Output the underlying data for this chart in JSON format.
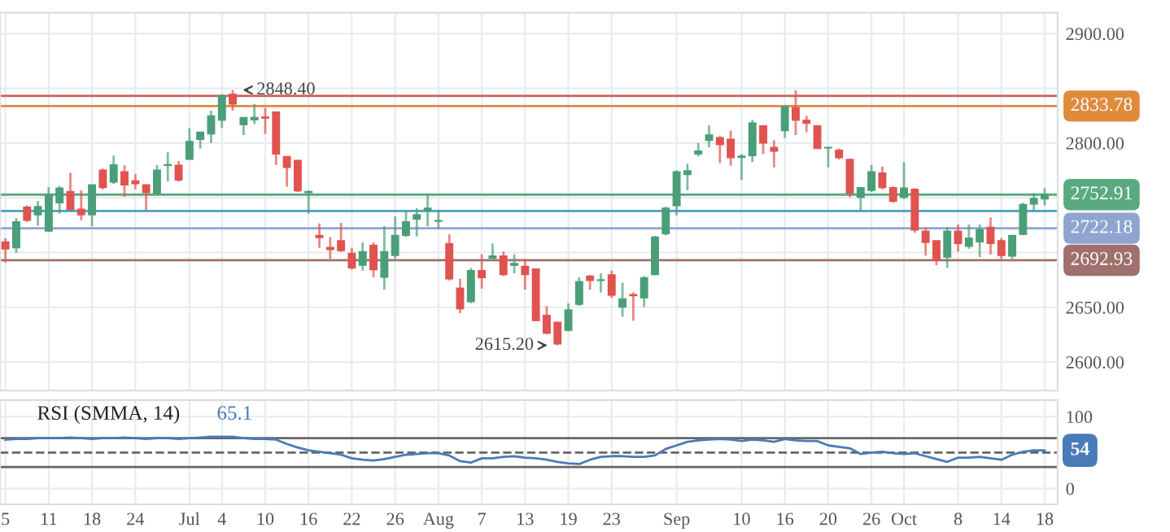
{
  "chart_data": [
    {
      "type": "candlestick",
      "categories": [
        null,
        null,
        null,
        null,
        null,
        null,
        null,
        null,
        null,
        null,
        null,
        null,
        null,
        null,
        null,
        null,
        null,
        null,
        null,
        null,
        null,
        null,
        null,
        null,
        null,
        null,
        null,
        null,
        null,
        null,
        null,
        null,
        null,
        null,
        null,
        null,
        null,
        null,
        null,
        null,
        null,
        null,
        null,
        null,
        null,
        null,
        null,
        null,
        null,
        null,
        null,
        null,
        null,
        null,
        null,
        null,
        null,
        null,
        null,
        null,
        null,
        null,
        null,
        null,
        null,
        null,
        null,
        null,
        null,
        null,
        null,
        null,
        null,
        null,
        null,
        null,
        null,
        null,
        null,
        null,
        null,
        null,
        null,
        null,
        null,
        null,
        null,
        null,
        null,
        null,
        null,
        null,
        null,
        null,
        null,
        null,
        null
      ],
      "ohlc": [
        [
          2709.7,
          2713,
          2690.8,
          2703.3
        ],
        [
          2704.3,
          2731.5,
          2699.8,
          2728
        ],
        [
          2741.4,
          2743,
          2728,
          2729.5
        ],
        [
          2734.5,
          2746.9,
          2724.6,
          2742
        ],
        [
          2719.6,
          2759.8,
          2719,
          2752.9
        ],
        [
          2745.4,
          2760.8,
          2735.5,
          2758.8
        ],
        [
          2755.8,
          2772.7,
          2738,
          2739.5
        ],
        [
          2739.5,
          2756.8,
          2729.5,
          2734.5
        ],
        [
          2734.5,
          2762,
          2724,
          2761.8
        ],
        [
          2775.2,
          2776.7,
          2757.8,
          2759.3
        ],
        [
          2764.3,
          2788.6,
          2762.8,
          2780.1
        ],
        [
          2773.7,
          2779.6,
          2750.9,
          2761.8
        ],
        [
          2765.3,
          2771.7,
          2757.8,
          2762.8
        ],
        [
          2761.8,
          2762,
          2739,
          2754.8
        ],
        [
          2753.9,
          2780.1,
          2752.9,
          2775.2
        ],
        [
          2779.6,
          2791.5,
          2764.8,
          2780.1
        ],
        [
          2779.6,
          2783.6,
          2764.8,
          2766.3
        ],
        [
          2785.1,
          2813.4,
          2784.6,
          2801.5
        ],
        [
          2803.4,
          2810,
          2795,
          2809.9
        ],
        [
          2808.4,
          2829.7,
          2800,
          2824.8
        ],
        [
          2820.8,
          2844.6,
          2813.9,
          2843.1
        ],
        [
          2844.6,
          2848.4,
          2829.7,
          2835.7
        ],
        [
          2816.8,
          2823.5,
          2807.4,
          2823.3
        ],
        [
          2821.3,
          2835.7,
          2817.3,
          2823.3
        ],
        [
          2823.8,
          2832.2,
          2808.4,
          2822.8
        ],
        [
          2828.3,
          2828.5,
          2780.1,
          2790.1
        ],
        [
          2787.6,
          2787.8,
          2760.3,
          2777.7
        ],
        [
          2784.1,
          2784.5,
          2755.3,
          2756.3
        ],
        [
          2754.8,
          2756.8,
          2735.5,
          2755.8
        ],
        [
          2715.7,
          2726.6,
          2704.3,
          2713.7
        ],
        [
          2704.7,
          2714.2,
          2694.3,
          2702.8
        ],
        [
          2710.7,
          2727.1,
          2700.8,
          2701.8
        ],
        [
          2699.3,
          2704.3,
          2684.4,
          2685.9
        ],
        [
          2688.4,
          2709.2,
          2683.4,
          2700.8
        ],
        [
          2706.7,
          2709.2,
          2677.5,
          2684.4
        ],
        [
          2677.5,
          2724.1,
          2666.1,
          2700.8
        ],
        [
          2697.3,
          2733,
          2694.3,
          2715.7
        ],
        [
          2715.7,
          2738,
          2714.2,
          2728
        ],
        [
          2730.5,
          2740.5,
          2714.7,
          2734.5
        ],
        [
          2738,
          2752.9,
          2724,
          2740.5
        ],
        [
          2728.6,
          2739,
          2722.1,
          2729.1
        ],
        [
          2708.2,
          2716.7,
          2674.5,
          2676
        ],
        [
          2667.5,
          2676,
          2644.7,
          2648.7
        ],
        [
          2655.2,
          2685.9,
          2653.7,
          2683.4
        ],
        [
          2683.4,
          2698.3,
          2667,
          2677
        ],
        [
          2694.8,
          2708.2,
          2694.3,
          2696.8
        ],
        [
          2696.8,
          2700.8,
          2678.5,
          2679.9
        ],
        [
          2688.4,
          2698.3,
          2681,
          2689.9
        ],
        [
          2687.4,
          2694.3,
          2666.1,
          2679.9
        ],
        [
          2684.9,
          2685.2,
          2637.5,
          2637.8
        ],
        [
          2642.7,
          2651.2,
          2625.4,
          2626.4
        ],
        [
          2636.3,
          2636.5,
          2615.2,
          2616.5
        ],
        [
          2628.9,
          2653.7,
          2627.9,
          2647.7
        ],
        [
          2652.7,
          2677.5,
          2651.2,
          2673.5
        ],
        [
          2678.5,
          2679.5,
          2666.1,
          2674.5
        ],
        [
          2674.5,
          2680.9,
          2663.6,
          2675
        ],
        [
          2679.5,
          2683.4,
          2658.6,
          2661.1
        ],
        [
          2650.2,
          2672.5,
          2641.3,
          2657.6
        ],
        [
          2661.6,
          2663.6,
          2637.8,
          2660.6
        ],
        [
          2658.6,
          2678.5,
          2650.2,
          2677
        ],
        [
          2679.9,
          2715.2,
          2679.5,
          2714.2
        ],
        [
          2717.2,
          2742,
          2715.7,
          2740.5
        ],
        [
          2742.9,
          2775.2,
          2734,
          2773.7
        ],
        [
          2771.2,
          2781.1,
          2756.8,
          2774.7
        ],
        [
          2790.1,
          2800,
          2787.6,
          2792.6
        ],
        [
          2802.5,
          2816.3,
          2796,
          2807.4
        ],
        [
          2804.9,
          2806.4,
          2781.6,
          2798.5
        ],
        [
          2803.4,
          2811.4,
          2779.2,
          2786.6
        ],
        [
          2787.1,
          2790.1,
          2766.3,
          2788.1
        ],
        [
          2788.6,
          2821.3,
          2782.6,
          2818.3
        ],
        [
          2815.8,
          2816,
          2790.1,
          2800
        ],
        [
          2796,
          2802.5,
          2777.7,
          2792.6
        ],
        [
          2811.4,
          2834.7,
          2805,
          2833.2
        ],
        [
          2832.2,
          2848.1,
          2807.4,
          2820.8
        ],
        [
          2820.8,
          2824.8,
          2809.9,
          2818.3
        ],
        [
          2815.8,
          2816,
          2794.8,
          2795
        ],
        [
          2795.5,
          2796.5,
          2777.7,
          2796
        ],
        [
          2793.5,
          2795,
          2785.1,
          2786.6
        ],
        [
          2785.1,
          2785.5,
          2750.4,
          2754.3
        ],
        [
          2750.4,
          2759.5,
          2738,
          2759.3
        ],
        [
          2756.8,
          2780.1,
          2755.3,
          2773.7
        ],
        [
          2772.7,
          2778.6,
          2757.8,
          2759.3
        ],
        [
          2759.3,
          2760.3,
          2745.4,
          2746.9
        ],
        [
          2750.4,
          2782.6,
          2748.9,
          2758.8
        ],
        [
          2757.8,
          2758.8,
          2718.1,
          2720.6
        ],
        [
          2719.6,
          2723.1,
          2697.3,
          2709.2
        ],
        [
          2710.7,
          2711,
          2688.4,
          2693.3
        ],
        [
          2695.8,
          2723.1,
          2685.9,
          2719.6
        ],
        [
          2719.6,
          2725.6,
          2700.8,
          2708.2
        ],
        [
          2705.7,
          2725.6,
          2703.3,
          2713.2
        ],
        [
          2709.7,
          2725.6,
          2695.8,
          2720.6
        ],
        [
          2723.1,
          2732,
          2698.3,
          2708.2
        ],
        [
          2710.7,
          2713.2,
          2694.3,
          2697.3
        ],
        [
          2696.8,
          2716,
          2694.3,
          2715.7
        ],
        [
          2716.7,
          2745.4,
          2715.7,
          2743.9
        ],
        [
          2744.4,
          2754.3,
          2739,
          2749.4
        ],
        [
          2748.9,
          2758.8,
          2742.9,
          2752.91
        ]
      ],
      "colors": [
        "#e0534f",
        "#4a9e78",
        "#e0534f",
        "#4a9e78",
        "#4a9e78",
        "#4a9e78",
        "#e0534f",
        "#e0534f",
        "#4a9e78",
        "#e0534f",
        "#4a9e78",
        "#e0534f",
        "#e0534f",
        "#e0534f",
        "#4a9e78",
        "#4a9e78",
        "#e0534f",
        "#4a9e78",
        "#4a9e78",
        "#4a9e78",
        "#4a9e78",
        "#e0534f",
        "#4a9e78",
        "#4a9e78",
        "#e0534f",
        "#e0534f",
        "#e0534f",
        "#e0534f",
        "#4a9e78",
        "#e0534f",
        "#e0534f",
        "#e0534f",
        "#e0534f",
        "#4a9e78",
        "#e0534f",
        "#4a9e78",
        "#4a9e78",
        "#4a9e78",
        "#4a9e78",
        "#4a9e78",
        "#4a9e78",
        "#e0534f",
        "#e0534f",
        "#4a9e78",
        "#e0534f",
        "#4a9e78",
        "#e0534f",
        "#4a9e78",
        "#e0534f",
        "#e0534f",
        "#e0534f",
        "#e0534f",
        "#4a9e78",
        "#4a9e78",
        "#e0534f",
        "#4a9e78",
        "#e0534f",
        "#4a9e78",
        "#e0534f",
        "#4a9e78",
        "#4a9e78",
        "#4a9e78",
        "#4a9e78",
        "#4a9e78",
        "#4a9e78",
        "#4a9e78",
        "#e0534f",
        "#e0534f",
        "#4a9e78",
        "#4a9e78",
        "#e0534f",
        "#e0534f",
        "#4a9e78",
        "#e0534f",
        "#e0534f",
        "#e0534f",
        "#4a9e78",
        "#e0534f",
        "#e0534f",
        "#4a9e78",
        "#4a9e78",
        "#e0534f",
        "#e0534f",
        "#4a9e78",
        "#e0534f",
        "#e0534f",
        "#e0534f",
        "#4a9e78",
        "#e0534f",
        "#4a9e78",
        "#4a9e78",
        "#e0534f",
        "#e0534f",
        "#4a9e78",
        "#4a9e78",
        "#4a9e78",
        "#4a9e78"
      ],
      "ylim": [
        2574,
        2919
      ],
      "yticks": [
        {
          "value": 2600,
          "label": "2600.00"
        },
        {
          "value": 2650,
          "label": "2650.00"
        },
        {
          "value": 2700,
          "label": null
        },
        {
          "value": 2750,
          "label": null
        },
        {
          "value": 2800,
          "label": "2800.00"
        },
        {
          "value": 2850,
          "label": null
        },
        {
          "value": 2900,
          "label": "2900.00"
        }
      ],
      "grid": true,
      "ref_lines": [
        {
          "axis": "y",
          "value": 2843,
          "label": null,
          "color": "#c9605c"
        },
        {
          "axis": "y",
          "value": 2833.78,
          "label": "2833.78",
          "color": "#e08a3c"
        },
        {
          "axis": "y",
          "value": 2752.91,
          "label": "2752.91",
          "color": "#5aaa80"
        },
        {
          "axis": "y",
          "value": 2738,
          "label": null,
          "color": "#4aa0c0"
        },
        {
          "axis": "y",
          "value": 2722.18,
          "label": "2722.18",
          "color": "#8fa5d0"
        },
        {
          "axis": "y",
          "value": 2692.93,
          "label": "2692.93",
          "color": "#a0706c"
        }
      ],
      "annotations": [
        "2848.40",
        "2615.20"
      ]
    },
    {
      "type": "line",
      "title": "RSI (SMMA, 14)",
      "categories": [
        "5",
        null,
        null,
        null,
        "11",
        null,
        null,
        null,
        "18",
        null,
        null,
        null,
        "24",
        null,
        null,
        null,
        null,
        "Jul",
        null,
        null,
        "4",
        null,
        null,
        null,
        "10",
        null,
        null,
        null,
        "16",
        null,
        null,
        null,
        "22",
        null,
        null,
        null,
        "26",
        null,
        null,
        null,
        "Aug",
        null,
        null,
        null,
        "7",
        null,
        null,
        null,
        "13",
        null,
        null,
        null,
        "19",
        null,
        null,
        null,
        "23",
        null,
        null,
        null,
        null,
        null,
        "Sep",
        null,
        null,
        null,
        null,
        null,
        "10",
        null,
        null,
        null,
        "16",
        null,
        null,
        null,
        "20",
        null,
        null,
        null,
        "26",
        null,
        null,
        "Oct",
        null,
        null,
        null,
        null,
        "8",
        null,
        null,
        null,
        "14",
        null,
        null,
        null,
        "18"
      ],
      "series": [
        {
          "color": "#4a7ab8",
          "values": [
            68,
            69,
            69,
            70,
            70,
            70,
            71,
            70,
            69,
            70,
            70,
            71,
            70,
            69,
            70,
            70,
            69,
            70,
            71,
            72,
            72,
            72,
            70,
            69,
            69,
            68,
            62,
            57,
            53,
            51,
            49,
            47,
            42,
            40,
            39,
            41,
            44,
            47,
            48,
            49,
            49,
            46,
            38,
            36,
            42,
            42,
            44,
            45,
            43,
            42,
            40,
            37,
            35,
            34,
            40,
            44,
            45,
            45,
            44,
            44,
            46,
            55,
            60,
            65,
            67,
            68,
            69,
            68,
            66,
            68,
            67,
            65,
            69,
            67,
            66,
            66,
            60,
            58,
            56,
            48,
            50,
            51,
            49,
            48,
            49,
            45,
            41,
            37,
            43,
            43,
            44,
            42,
            40,
            47,
            51,
            53,
            53
          ]
        }
      ],
      "ylim": [
        -22,
        123
      ],
      "yticks": [
        0,
        100
      ],
      "grid": true,
      "ref_lines": [
        {
          "axis": "y",
          "value": 70,
          "label": null,
          "color": "#666666",
          "line_style": "solid"
        },
        {
          "axis": "y",
          "value": 30,
          "label": null,
          "color": "#666666",
          "line_style": "solid"
        },
        {
          "axis": "y",
          "value": 50,
          "label": null,
          "color": "#666666",
          "line_style": "dashed"
        }
      ],
      "annotations": [
        "65.1",
        "54"
      ]
    }
  ]
}
